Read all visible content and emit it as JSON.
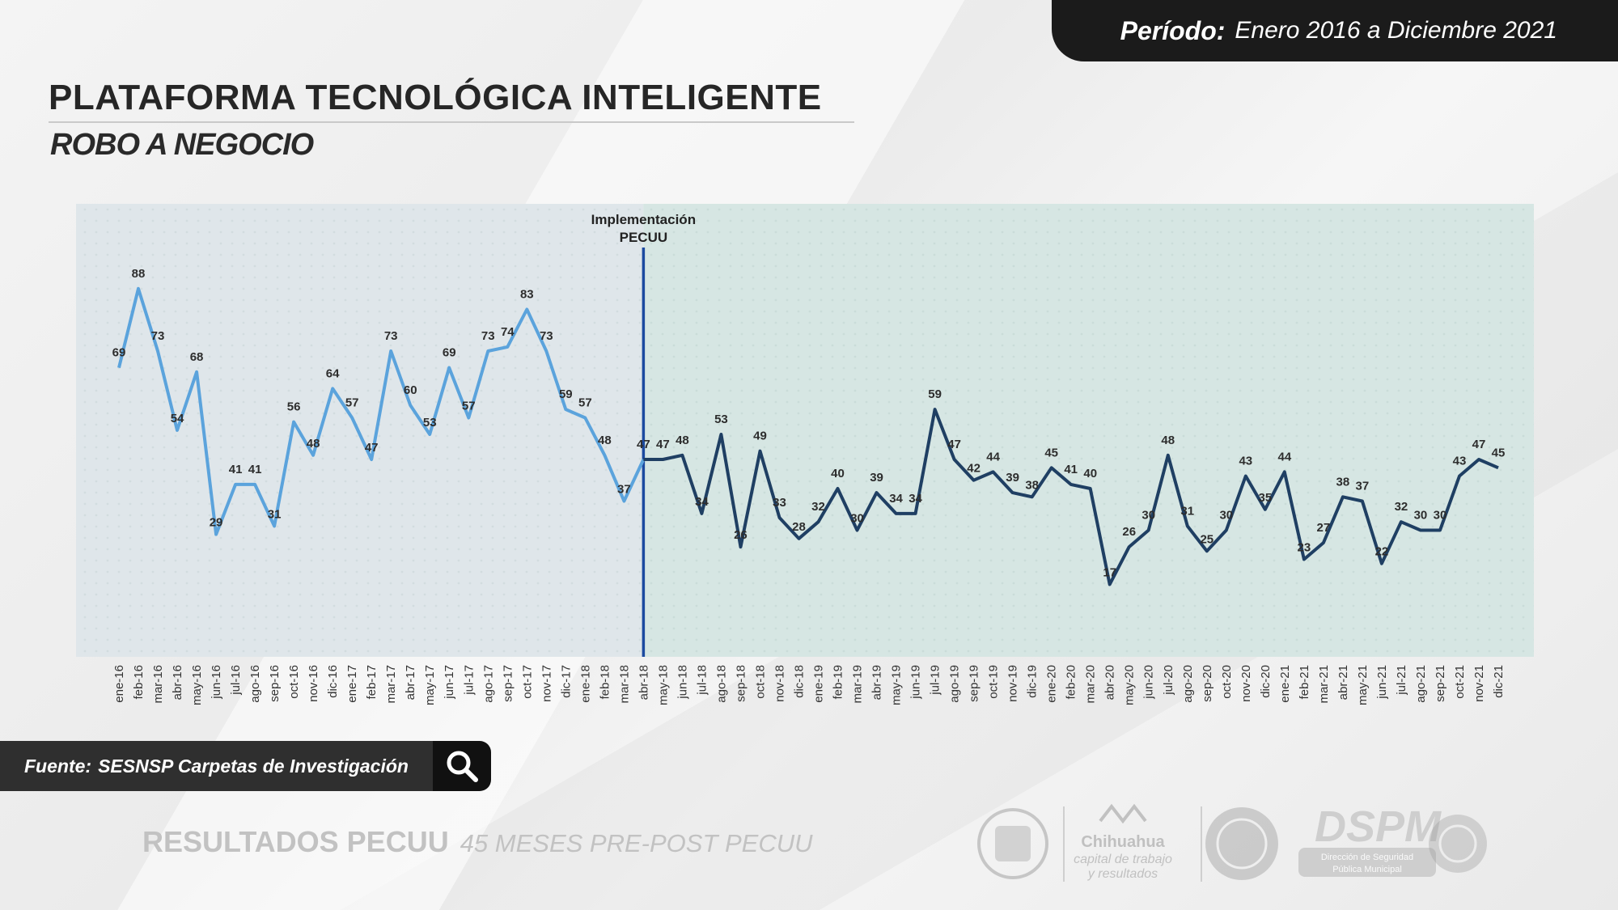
{
  "header": {
    "period_label": "Período:",
    "period_value": "Enero 2016 a Diciembre 2021",
    "title": "PLATAFORMA TECNOLÓGICA INTELIGENTE",
    "subtitle": "ROBO A NEGOCIO"
  },
  "source": {
    "label": "Fuente:",
    "text": "SESNSP Carpetas de Investigación"
  },
  "footer": {
    "main": "RESULTADOS PECUU",
    "sub": "45 MESES PRE-POST PECUU"
  },
  "logos": {
    "chihuahua_line1": "Chihuahua",
    "chihuahua_line2": "capital de trabajo",
    "chihuahua_line3": "y resultados",
    "dspm": "DSPM",
    "dspm_sub1": "Dirección de Seguridad",
    "dspm_sub2": "Pública Municipal"
  },
  "colors": {
    "pre": "#5ba3dc",
    "post": "#1f3f63",
    "marker": "#1c4aa0",
    "text": "#262626"
  },
  "chart_data": {
    "type": "line",
    "annotation": {
      "line1": "Implementación",
      "line2": "PECUU",
      "at_index": 27
    },
    "categories": [
      "ene-16",
      "feb-16",
      "mar-16",
      "abr-16",
      "may-16",
      "jun-16",
      "jul-16",
      "ago-16",
      "sep-16",
      "oct-16",
      "nov-16",
      "dic-16",
      "ene-17",
      "feb-17",
      "mar-17",
      "abr-17",
      "may-17",
      "jun-17",
      "jul-17",
      "ago-17",
      "sep-17",
      "oct-17",
      "nov-17",
      "dic-17",
      "ene-18",
      "feb-18",
      "mar-18",
      "abr-18",
      "may-18",
      "jun-18",
      "jul-18",
      "ago-18",
      "sep-18",
      "oct-18",
      "nov-18",
      "dic-18",
      "ene-19",
      "feb-19",
      "mar-19",
      "abr-19",
      "may-19",
      "jun-19",
      "jul-19",
      "ago-19",
      "sep-19",
      "oct-19",
      "nov-19",
      "dic-19",
      "ene-20",
      "feb-20",
      "mar-20",
      "abr-20",
      "may-20",
      "jun-20",
      "jul-20",
      "ago-20",
      "sep-20",
      "oct-20",
      "nov-20",
      "dic-20",
      "ene-21",
      "feb-21",
      "mar-21",
      "abr-21",
      "may-21",
      "jun-21",
      "jul-21",
      "ago-21",
      "sep-21",
      "oct-21",
      "nov-21",
      "dic-21"
    ],
    "values": [
      69,
      88,
      73,
      54,
      68,
      29,
      41,
      41,
      31,
      56,
      48,
      64,
      57,
      47,
      73,
      60,
      53,
      69,
      57,
      73,
      74,
      83,
      73,
      59,
      57,
      48,
      37,
      47,
      47,
      48,
      34,
      53,
      26,
      49,
      33,
      28,
      32,
      40,
      30,
      39,
      34,
      34,
      59,
      47,
      42,
      44,
      39,
      38,
      45,
      41,
      40,
      17,
      26,
      30,
      48,
      31,
      25,
      30,
      43,
      35,
      44,
      23,
      27,
      38,
      37,
      22,
      32,
      30,
      30,
      43,
      47,
      45
    ],
    "pre_end_index": 27,
    "ylim": [
      0,
      100
    ]
  }
}
